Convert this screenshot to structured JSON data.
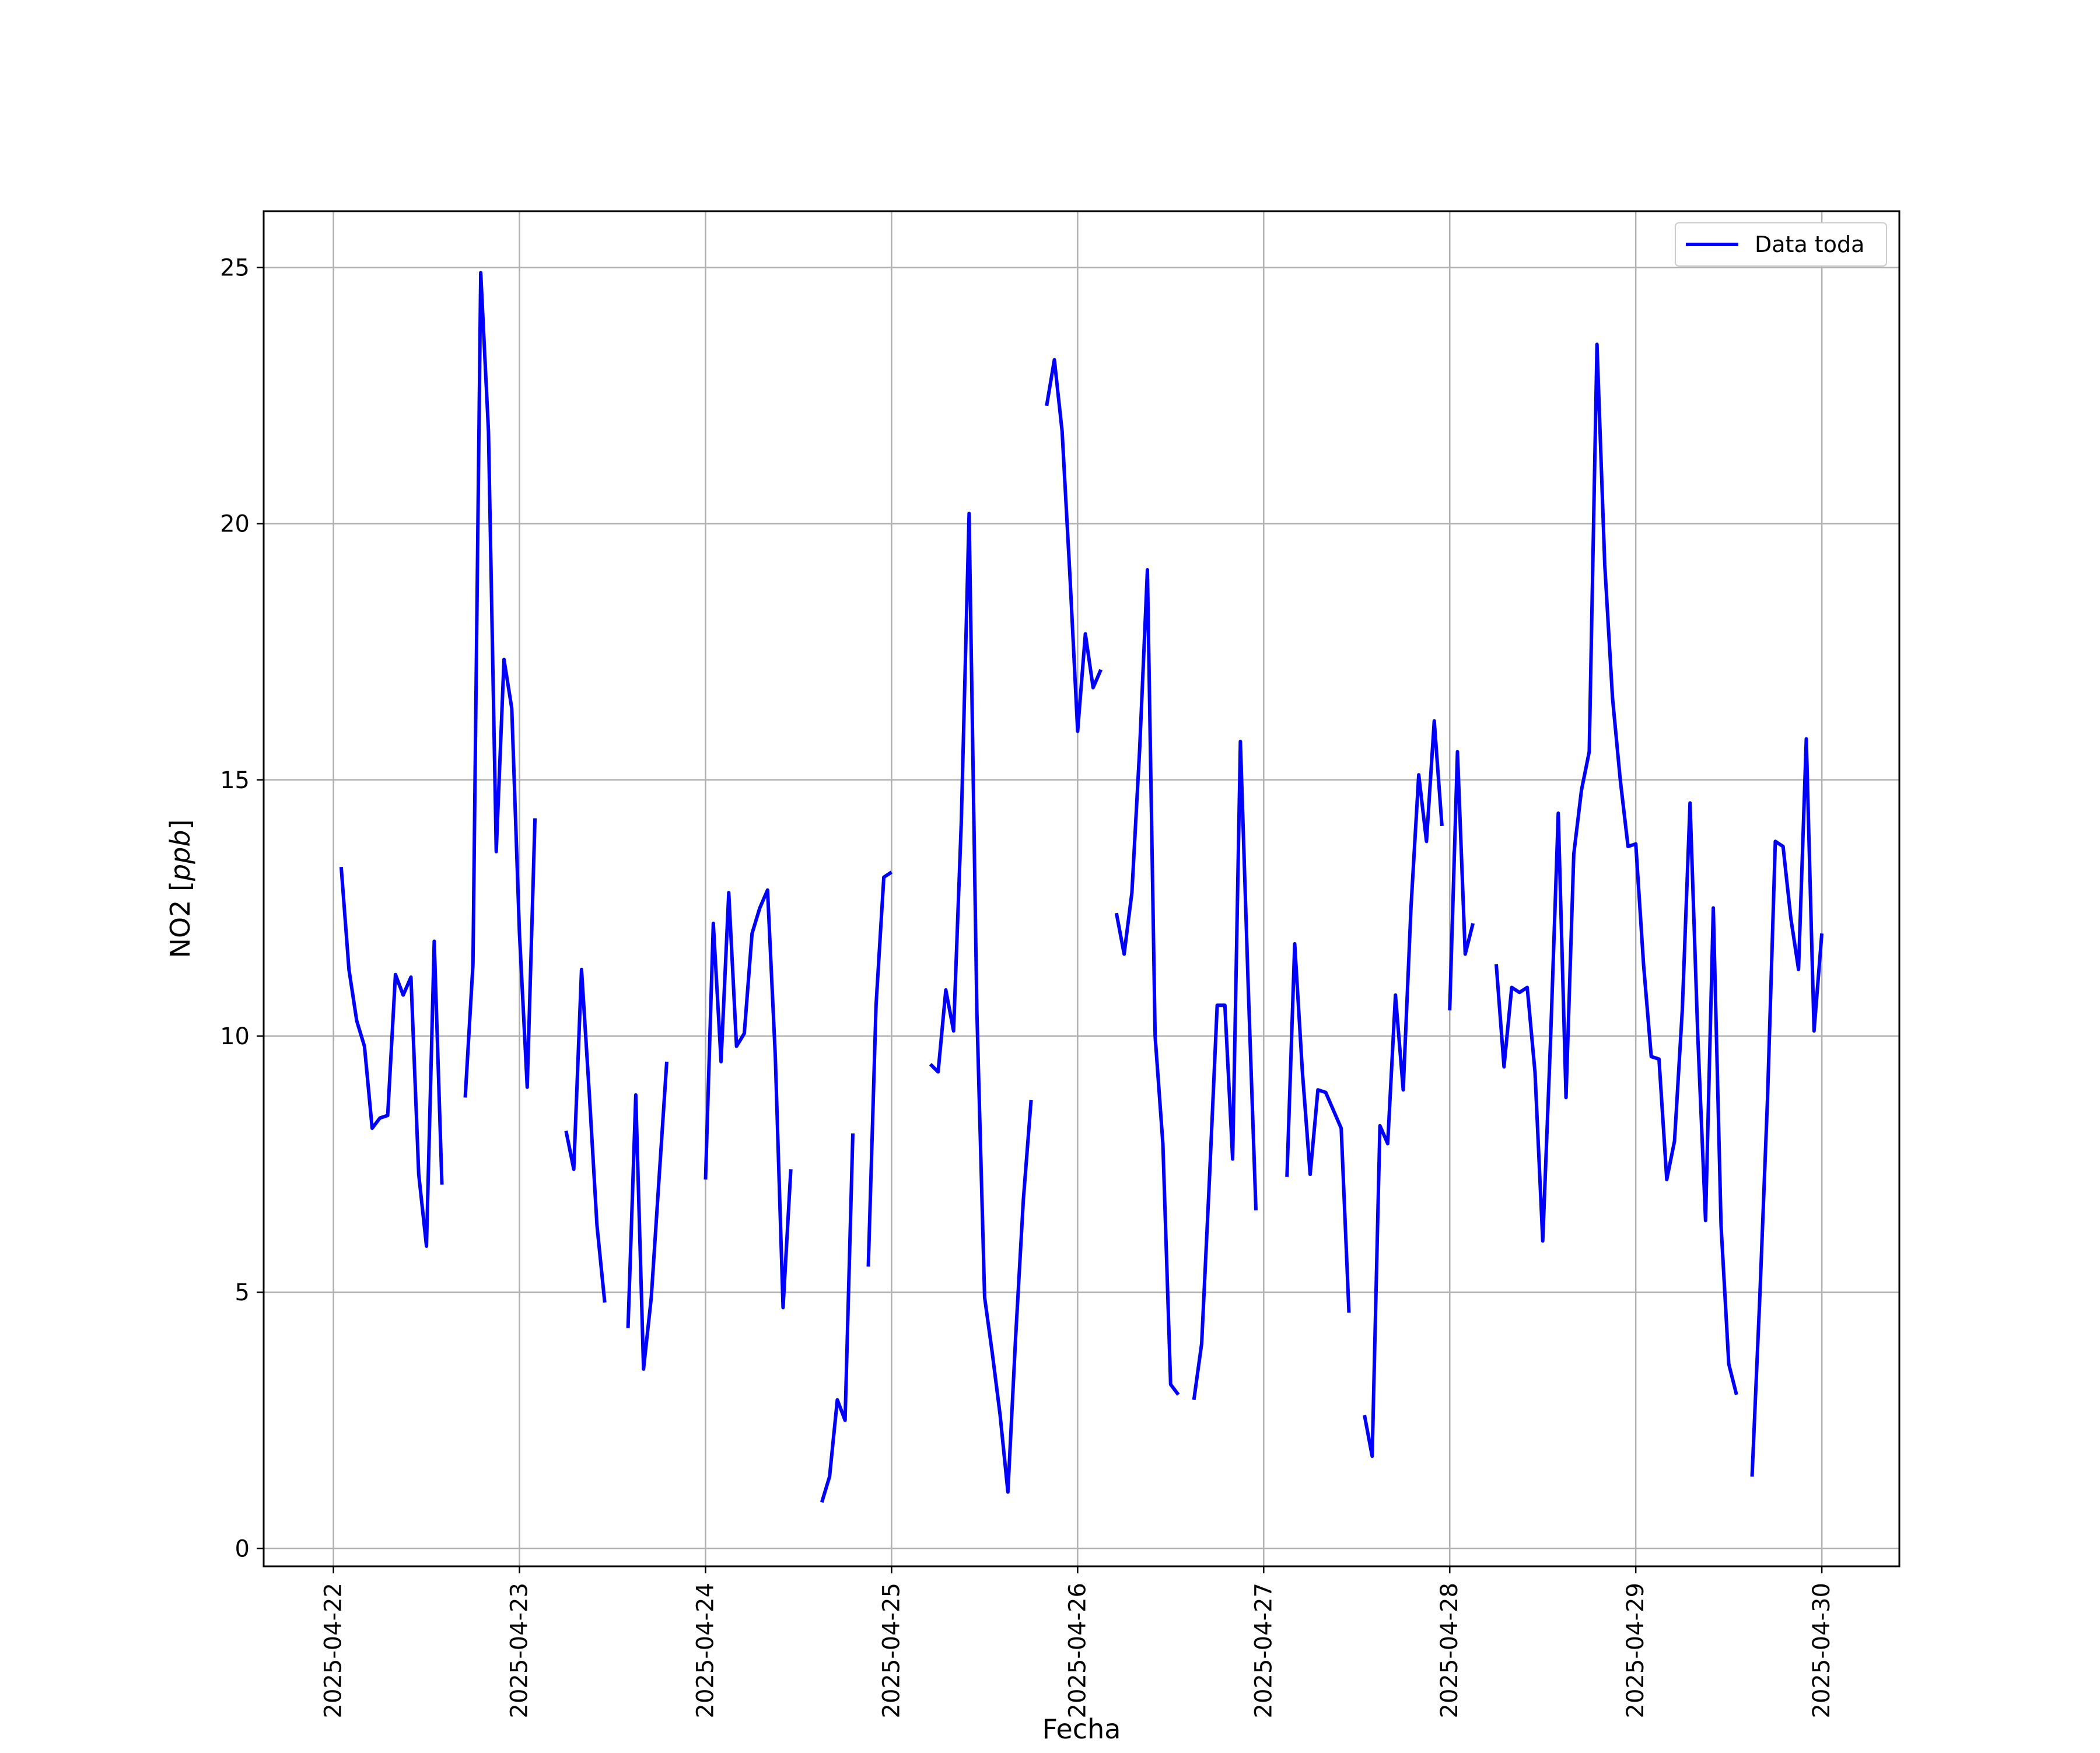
{
  "chart_data": {
    "type": "line",
    "title": "",
    "xlabel": "Fecha",
    "ylabel": "NO2 [ppb]",
    "ylabel_parts": {
      "prefix": "NO2 [",
      "unit": "ppb",
      "suffix": "]"
    },
    "x_ticks": [
      "2025-04-22",
      "2025-04-23",
      "2025-04-24",
      "2025-04-25",
      "2025-04-26",
      "2025-04-27",
      "2025-04-28",
      "2025-04-29",
      "2025-04-30"
    ],
    "y_ticks": [
      0,
      5,
      10,
      15,
      20,
      25
    ],
    "xlim": [
      "2025-04-21 15:00",
      "2025-04-30 10:00"
    ],
    "ylim": [
      -0.35,
      26.1
    ],
    "grid": true,
    "legend": {
      "placement": "top-right"
    },
    "series": [
      {
        "name": "Data toda",
        "color": "#0000ff",
        "segments": [
          [
            [
              "2025-04-22 01:00",
              13.3
            ],
            [
              "2025-04-22 02:00",
              11.3
            ],
            [
              "2025-04-22 03:00",
              10.3
            ],
            [
              "2025-04-22 04:00",
              9.8
            ],
            [
              "2025-04-22 05:00",
              8.2
            ],
            [
              "2025-04-22 06:00",
              8.4
            ],
            [
              "2025-04-22 07:00",
              8.45
            ],
            [
              "2025-04-22 08:00",
              11.2
            ],
            [
              "2025-04-22 09:00",
              10.8
            ],
            [
              "2025-04-22 10:00",
              11.15
            ],
            [
              "2025-04-22 11:00",
              7.3
            ],
            [
              "2025-04-22 12:00",
              5.9
            ],
            [
              "2025-04-22 13:00",
              11.85
            ],
            [
              "2025-04-22 14:00",
              7.1
            ]
          ],
          [
            [
              "2025-04-22 17:00",
              8.8
            ],
            [
              "2025-04-22 18:00",
              11.4
            ],
            [
              "2025-04-22 19:00",
              24.9
            ],
            [
              "2025-04-22 20:00",
              21.8
            ],
            [
              "2025-04-22 21:00",
              13.6
            ],
            [
              "2025-04-22 22:00",
              17.35
            ],
            [
              "2025-04-22 23:00",
              16.4
            ],
            [
              "2025-04-23 00:00",
              12.0
            ],
            [
              "2025-04-23 01:00",
              9.0
            ],
            [
              "2025-04-23 02:00",
              14.25
            ]
          ],
          [
            [
              "2025-04-23 06:00",
              8.15
            ],
            [
              "2025-04-23 07:00",
              7.4
            ],
            [
              "2025-04-23 08:00",
              11.3
            ],
            [
              "2025-04-23 09:00",
              8.9
            ],
            [
              "2025-04-23 10:00",
              6.3
            ],
            [
              "2025-04-23 11:00",
              4.8
            ]
          ],
          [
            [
              "2025-04-23 14:00",
              4.3
            ],
            [
              "2025-04-23 15:00",
              8.85
            ],
            [
              "2025-04-23 16:00",
              3.5
            ],
            [
              "2025-04-23 17:00",
              4.9
            ],
            [
              "2025-04-23 18:00",
              7.2
            ],
            [
              "2025-04-23 19:00",
              9.5
            ]
          ],
          [
            [
              "2025-04-24 00:00",
              7.2
            ],
            [
              "2025-04-24 01:00",
              12.2
            ],
            [
              "2025-04-24 02:00",
              9.5
            ],
            [
              "2025-04-24 03:00",
              12.8
            ],
            [
              "2025-04-24 04:00",
              9.8
            ],
            [
              "2025-04-24 05:00",
              10.05
            ],
            [
              "2025-04-24 06:00",
              12.0
            ],
            [
              "2025-04-24 07:00",
              12.5
            ],
            [
              "2025-04-24 08:00",
              12.85
            ],
            [
              "2025-04-24 09:00",
              9.6
            ],
            [
              "2025-04-24 10:00",
              4.7
            ],
            [
              "2025-04-24 11:00",
              7.4
            ]
          ],
          [
            [
              "2025-04-24 15:00",
              0.9
            ],
            [
              "2025-04-24 16:00",
              1.4
            ],
            [
              "2025-04-24 17:00",
              2.9
            ],
            [
              "2025-04-24 18:00",
              2.5
            ],
            [
              "2025-04-24 19:00",
              8.1
            ]
          ],
          [
            [
              "2025-04-24 21:00",
              5.5
            ],
            [
              "2025-04-24 22:00",
              10.6
            ],
            [
              "2025-04-24 23:00",
              13.1
            ],
            [
              "2025-04-25 00:00",
              13.2
            ]
          ],
          [
            [
              "2025-04-25 05:00",
              9.45
            ],
            [
              "2025-04-25 06:00",
              9.3
            ],
            [
              "2025-04-25 07:00",
              10.9
            ],
            [
              "2025-04-25 08:00",
              10.1
            ],
            [
              "2025-04-25 09:00",
              14.2
            ],
            [
              "2025-04-25 10:00",
              20.2
            ],
            [
              "2025-04-25 11:00",
              10.5
            ],
            [
              "2025-04-25 12:00",
              4.9
            ],
            [
              "2025-04-25 13:00",
              3.8
            ],
            [
              "2025-04-25 14:00",
              2.6
            ],
            [
              "2025-04-25 15:00",
              1.1
            ],
            [
              "2025-04-25 16:00",
              4.1
            ],
            [
              "2025-04-25 17:00",
              6.8
            ],
            [
              "2025-04-25 18:00",
              8.75
            ]
          ],
          [
            [
              "2025-04-25 20:00",
              22.3
            ],
            [
              "2025-04-25 21:00",
              23.2
            ],
            [
              "2025-04-25 22:00",
              21.8
            ],
            [
              "2025-04-25 23:00",
              19.0
            ],
            [
              "2025-04-26 00:00",
              15.95
            ],
            [
              "2025-04-26 01:00",
              17.85
            ],
            [
              "2025-04-26 02:00",
              16.8
            ],
            [
              "2025-04-26 03:00",
              17.15
            ]
          ],
          [
            [
              "2025-04-26 05:00",
              12.4
            ],
            [
              "2025-04-26 06:00",
              11.6
            ],
            [
              "2025-04-26 07:00",
              12.8
            ],
            [
              "2025-04-26 08:00",
              15.6
            ],
            [
              "2025-04-26 09:00",
              19.1
            ],
            [
              "2025-04-26 10:00",
              10.0
            ],
            [
              "2025-04-26 11:00",
              7.9
            ],
            [
              "2025-04-26 12:00",
              3.2
            ],
            [
              "2025-04-26 13:00",
              3.0
            ]
          ],
          [
            [
              "2025-04-26 15:00",
              2.9
            ],
            [
              "2025-04-26 16:00",
              4.0
            ],
            [
              "2025-04-26 17:00",
              7.2
            ],
            [
              "2025-04-26 18:00",
              10.6
            ],
            [
              "2025-04-26 19:00",
              10.6
            ],
            [
              "2025-04-26 20:00",
              7.6
            ],
            [
              "2025-04-26 21:00",
              15.75
            ],
            [
              "2025-04-26 22:00",
              11.0
            ],
            [
              "2025-04-26 23:00",
              6.6
            ]
          ],
          [
            [
              "2025-04-27 03:00",
              7.25
            ],
            [
              "2025-04-27 04:00",
              11.8
            ],
            [
              "2025-04-27 05:00",
              9.3
            ],
            [
              "2025-04-27 06:00",
              7.3
            ],
            [
              "2025-04-27 07:00",
              8.95
            ],
            [
              "2025-04-27 08:00",
              8.9
            ],
            [
              "2025-04-27 09:00",
              8.55
            ],
            [
              "2025-04-27 10:00",
              8.2
            ],
            [
              "2025-04-27 11:00",
              4.6
            ]
          ],
          [
            [
              "2025-04-27 13:00",
              2.6
            ],
            [
              "2025-04-27 14:00",
              1.8
            ],
            [
              "2025-04-27 15:00",
              8.25
            ],
            [
              "2025-04-27 16:00",
              7.9
            ],
            [
              "2025-04-27 17:00",
              10.8
            ],
            [
              "2025-04-27 18:00",
              8.95
            ],
            [
              "2025-04-27 19:00",
              12.5
            ],
            [
              "2025-04-27 20:00",
              15.1
            ],
            [
              "2025-04-27 21:00",
              13.8
            ],
            [
              "2025-04-27 22:00",
              16.15
            ],
            [
              "2025-04-27 23:00",
              14.1
            ]
          ],
          [
            [
              "2025-04-28 00:00",
              10.5
            ],
            [
              "2025-04-28 01:00",
              15.55
            ],
            [
              "2025-04-28 02:00",
              11.6
            ],
            [
              "2025-04-28 03:00",
              12.2
            ]
          ],
          [
            [
              "2025-04-28 06:00",
              11.4
            ],
            [
              "2025-04-28 07:00",
              9.4
            ],
            [
              "2025-04-28 08:00",
              10.95
            ],
            [
              "2025-04-28 09:00",
              10.85
            ],
            [
              "2025-04-28 10:00",
              10.95
            ],
            [
              "2025-04-28 11:00",
              9.3
            ],
            [
              "2025-04-28 12:00",
              6.0
            ],
            [
              "2025-04-28 13:00",
              9.9
            ],
            [
              "2025-04-28 14:00",
              14.35
            ],
            [
              "2025-04-28 15:00",
              8.8
            ],
            [
              "2025-04-28 16:00",
              13.55
            ],
            [
              "2025-04-28 17:00",
              14.8
            ],
            [
              "2025-04-28 18:00",
              15.55
            ],
            [
              "2025-04-28 19:00",
              23.5
            ],
            [
              "2025-04-28 20:00",
              19.2
            ],
            [
              "2025-04-28 21:00",
              16.6
            ],
            [
              "2025-04-28 22:00",
              15.0
            ],
            [
              "2025-04-28 23:00",
              13.7
            ],
            [
              "2025-04-29 00:00",
              13.75
            ],
            [
              "2025-04-29 01:00",
              11.4
            ],
            [
              "2025-04-29 02:00",
              9.6
            ],
            [
              "2025-04-29 03:00",
              9.55
            ],
            [
              "2025-04-29 04:00",
              7.2
            ],
            [
              "2025-04-29 05:00",
              7.95
            ],
            [
              "2025-04-29 06:00",
              10.5
            ],
            [
              "2025-04-29 07:00",
              14.55
            ],
            [
              "2025-04-29 08:00",
              10.0
            ],
            [
              "2025-04-29 09:00",
              6.4
            ],
            [
              "2025-04-29 10:00",
              12.5
            ],
            [
              "2025-04-29 11:00",
              6.3
            ],
            [
              "2025-04-29 12:00",
              3.6
            ],
            [
              "2025-04-29 13:00",
              3.0
            ]
          ],
          [
            [
              "2025-04-29 15:00",
              1.4
            ],
            [
              "2025-04-29 16:00",
              4.9
            ],
            [
              "2025-04-29 17:00",
              8.8
            ],
            [
              "2025-04-29 18:00",
              13.8
            ],
            [
              "2025-04-29 19:00",
              13.7
            ],
            [
              "2025-04-29 20:00",
              12.3
            ],
            [
              "2025-04-29 21:00",
              11.3
            ],
            [
              "2025-04-29 22:00",
              15.8
            ],
            [
              "2025-04-29 23:00",
              10.1
            ],
            [
              "2025-04-30 00:00",
              12.0
            ]
          ]
        ]
      }
    ]
  }
}
